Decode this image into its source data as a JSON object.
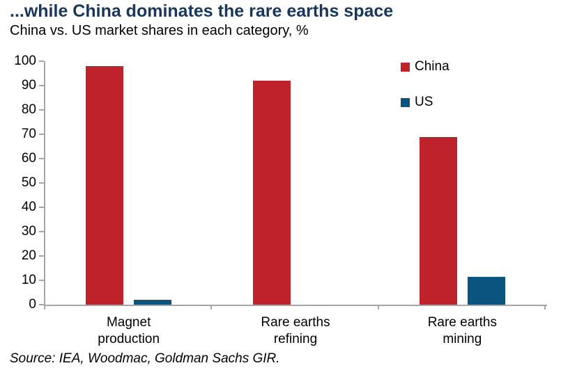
{
  "header": {
    "title": "...while China dominates the rare earths space",
    "subtitle": "China vs. US market shares in each category, %"
  },
  "footer": {
    "source": "Source: IEA, Woodmac, Goldman Sachs GIR."
  },
  "colors": {
    "title": "#17375e",
    "axis": "#a6a6a6",
    "china": "#c0222b",
    "us": "#0c5480"
  },
  "chart_data": {
    "type": "bar",
    "title": "...while China dominates the rare earths space",
    "subtitle": "China vs. US market shares in each category, %",
    "categories": [
      "Magnet\nproduction",
      "Rare earths\nrefining",
      "Rare earths\nmining"
    ],
    "series": [
      {
        "name": "China",
        "color": "#c0222b",
        "values": [
          98,
          92,
          69
        ]
      },
      {
        "name": "US",
        "color": "#0c5480",
        "values": [
          2,
          0,
          11.5
        ]
      }
    ],
    "ylabel": "",
    "xlabel": "",
    "ylim": [
      0,
      100
    ],
    "ytick_step": 10,
    "yticks": [
      0,
      10,
      20,
      30,
      40,
      50,
      60,
      70,
      80,
      90,
      100
    ],
    "grid": false,
    "legend_position": "top-right"
  }
}
